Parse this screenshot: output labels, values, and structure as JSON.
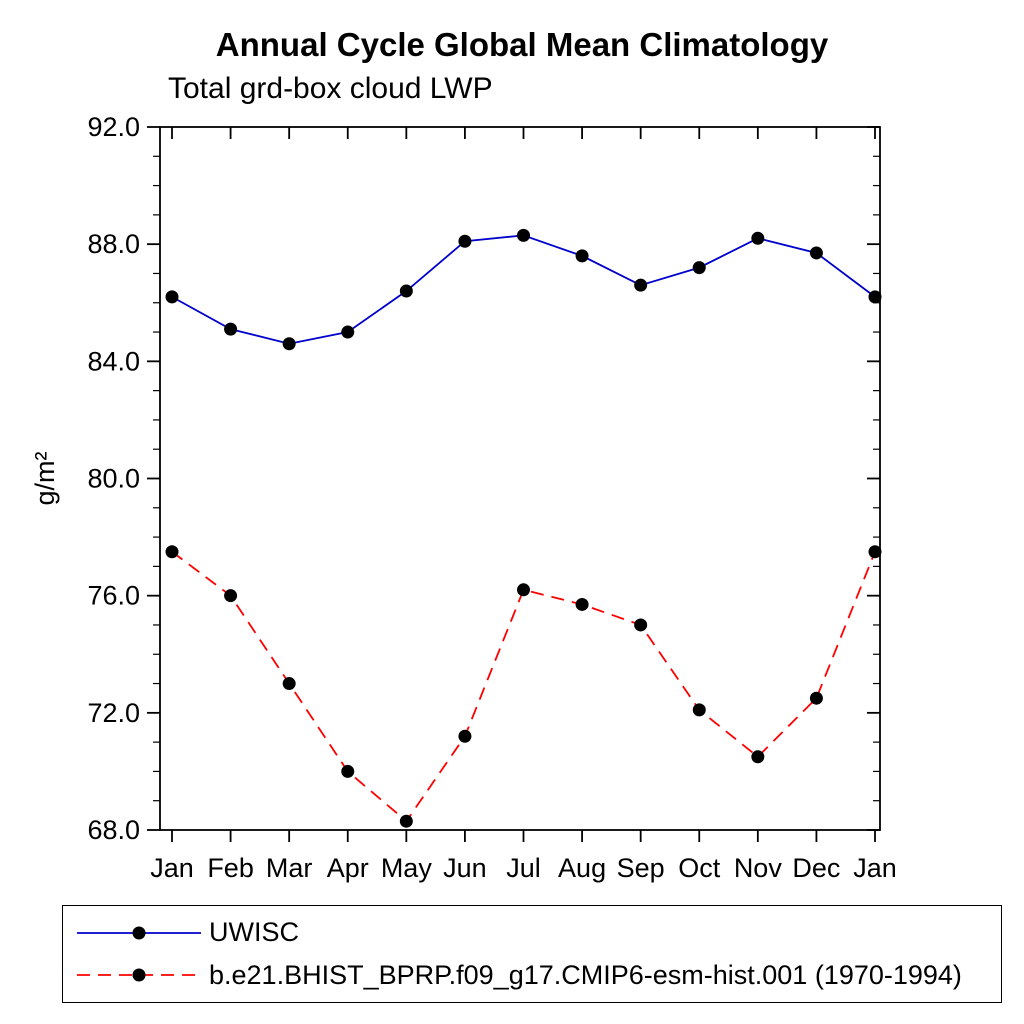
{
  "chart_data": {
    "type": "line",
    "title": "Annual Cycle Global Mean Climatology",
    "subtitle": "Total grd-box cloud LWP",
    "xlabel": "",
    "ylabel": "g/m²",
    "categories": [
      "Jan",
      "Feb",
      "Mar",
      "Apr",
      "May",
      "Jun",
      "Jul",
      "Aug",
      "Sep",
      "Oct",
      "Nov",
      "Dec",
      "Jan"
    ],
    "ylim": [
      68.0,
      92.0
    ],
    "yticks": [
      68.0,
      72.0,
      76.0,
      80.0,
      84.0,
      88.0,
      92.0
    ],
    "minor_tick_interval": 1.0,
    "grid": false,
    "legend_position": "bottom",
    "frame": true,
    "series": [
      {
        "name": "UWISC",
        "color": "#0000cc",
        "style": "solid",
        "marker": "circle",
        "marker_color": "#000000",
        "values": [
          86.2,
          85.1,
          84.6,
          85.0,
          86.4,
          88.1,
          88.3,
          87.6,
          86.6,
          87.2,
          88.2,
          87.7,
          86.2
        ]
      },
      {
        "name": "b.e21.BHIST_BPRP.f09_g17.CMIP6-esm-hist.001 (1970-1994)",
        "color": "#ff0000",
        "style": "dashed",
        "marker": "circle",
        "marker_color": "#000000",
        "values": [
          77.5,
          76.0,
          73.0,
          70.0,
          68.3,
          71.2,
          76.2,
          75.7,
          75.0,
          72.1,
          70.5,
          72.5,
          77.5
        ]
      }
    ]
  }
}
